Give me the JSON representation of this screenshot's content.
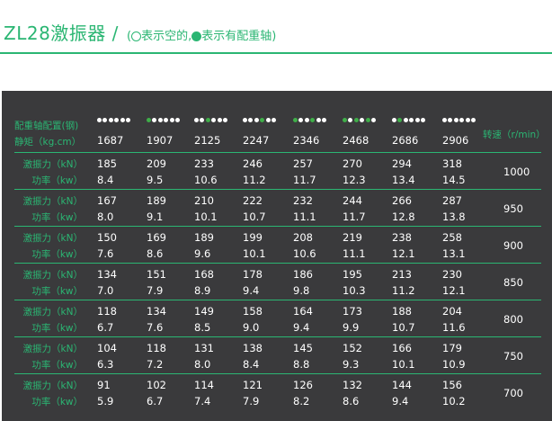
{
  "title": {
    "main": "ZL28激振器 /",
    "sub_open": "(",
    "sub_empty": "表示空的,",
    "sub_full": "表示有配重轴)"
  },
  "table": {
    "header_config_label": "配重轴配置(钢)",
    "header_torque_label": "静矩（kg.cm）",
    "speed_header": "转速（r/min）",
    "force_label": "激振力（kN）",
    "power_label": "功率（kw）",
    "configs": [
      [
        1,
        1,
        1,
        1,
        1,
        1
      ],
      [
        0,
        1,
        1,
        1,
        1,
        1
      ],
      [
        1,
        1,
        0,
        1,
        1,
        1
      ],
      [
        1,
        1,
        1,
        0,
        1,
        1
      ],
      [
        0,
        1,
        1,
        0,
        1,
        1
      ],
      [
        0,
        1,
        0,
        1,
        0,
        1
      ],
      [
        1,
        0,
        1,
        1,
        1,
        1
      ],
      [
        1,
        1,
        1,
        1,
        1,
        1
      ]
    ],
    "torques": [
      "1687",
      "1907",
      "2125",
      "2247",
      "2346",
      "2468",
      "2686",
      "2906"
    ],
    "rows": [
      {
        "speed": "1000",
        "force": [
          "185",
          "209",
          "233",
          "246",
          "257",
          "270",
          "294",
          "318"
        ],
        "power": [
          "8.4",
          "9.5",
          "10.6",
          "11.2",
          "11.7",
          "12.3",
          "13.4",
          "14.5"
        ]
      },
      {
        "speed": "950",
        "force": [
          "167",
          "189",
          "210",
          "222",
          "232",
          "244",
          "266",
          "287"
        ],
        "power": [
          "8.0",
          "9.1",
          "10.1",
          "10.7",
          "11.1",
          "11.7",
          "12.8",
          "13.8"
        ]
      },
      {
        "speed": "900",
        "force": [
          "150",
          "169",
          "189",
          "199",
          "208",
          "219",
          "238",
          "258"
        ],
        "power": [
          "7.6",
          "8.6",
          "9.6",
          "10.1",
          "10.6",
          "11.1",
          "12.1",
          "13.1"
        ]
      },
      {
        "speed": "850",
        "force": [
          "134",
          "151",
          "168",
          "178",
          "186",
          "195",
          "213",
          "230"
        ],
        "power": [
          "7.0",
          "7.9",
          "8.9",
          "9.4",
          "9.8",
          "10.3",
          "11.2",
          "12.1"
        ]
      },
      {
        "speed": "800",
        "force": [
          "118",
          "134",
          "149",
          "158",
          "164",
          "173",
          "188",
          "204"
        ],
        "power": [
          "6.7",
          "7.6",
          "8.5",
          "9.0",
          "9.4",
          "9.9",
          "10.7",
          "11.6"
        ]
      },
      {
        "speed": "750",
        "force": [
          "104",
          "118",
          "131",
          "138",
          "145",
          "152",
          "166",
          "179"
        ],
        "power": [
          "6.3",
          "7.2",
          "8.0",
          "8.4",
          "8.8",
          "9.3",
          "10.1",
          "10.9"
        ]
      },
      {
        "speed": "700",
        "force": [
          "91",
          "102",
          "114",
          "121",
          "126",
          "132",
          "144",
          "156"
        ],
        "power": [
          "5.9",
          "6.7",
          "7.4",
          "7.9",
          "8.2",
          "8.6",
          "9.4",
          "10.2"
        ]
      }
    ]
  },
  "colors": {
    "accent": "#2bb673",
    "panel": "#3a3a3c",
    "text": "#ffffff",
    "dot_empty": "#3fae49",
    "dot_full": "#ffffff"
  }
}
